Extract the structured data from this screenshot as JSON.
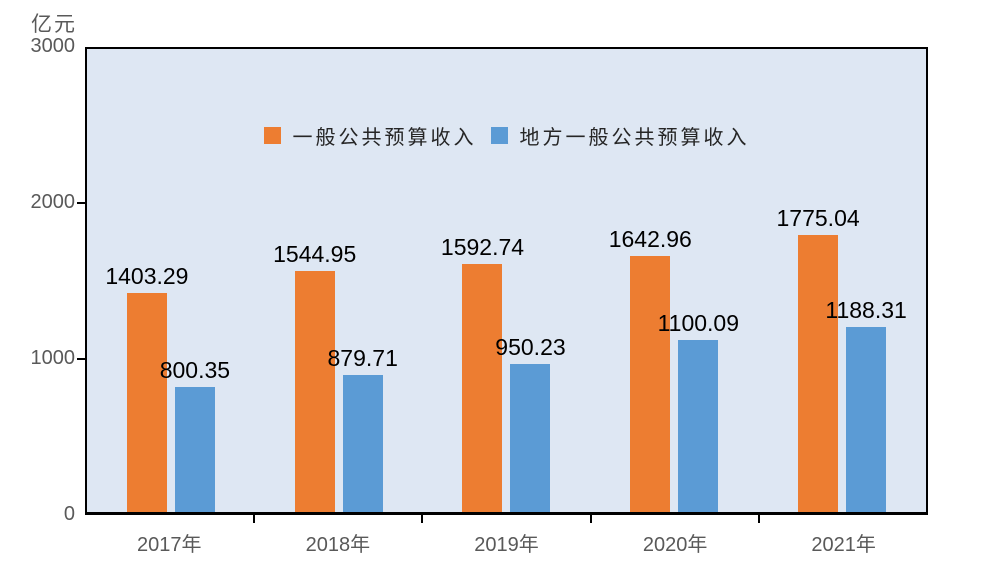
{
  "chart_data": {
    "type": "bar",
    "title": "",
    "categories": [
      "2017年",
      "2018年",
      "2019年",
      "2020年",
      "2021年"
    ],
    "series": [
      {
        "name": "一般公共预算收入",
        "color": "#ED7D31",
        "values": [
          1403.29,
          1544.95,
          1592.74,
          1642.96,
          1775.04
        ]
      },
      {
        "name": "地方一般公共预算收入",
        "color": "#5B9BD5",
        "values": [
          800.35,
          879.71,
          950.23,
          1100.09,
          1188.31
        ]
      }
    ],
    "xlabel": "",
    "ylabel": "亿元",
    "ylim": [
      0,
      3000
    ],
    "yticks": [
      0,
      1000,
      2000,
      3000
    ],
    "grid": false,
    "legend_position": "top-center",
    "plot_background": "#DEE7F3",
    "value_label_decimals": 2
  },
  "colors": {
    "series1": "#ED7D31",
    "series2": "#5B9BD5",
    "plot_background": "#DEE7F3",
    "axis_line": "#000000",
    "axis_text": "#595959",
    "data_label_text": "#000000",
    "page_background": "#FFFFFF"
  }
}
